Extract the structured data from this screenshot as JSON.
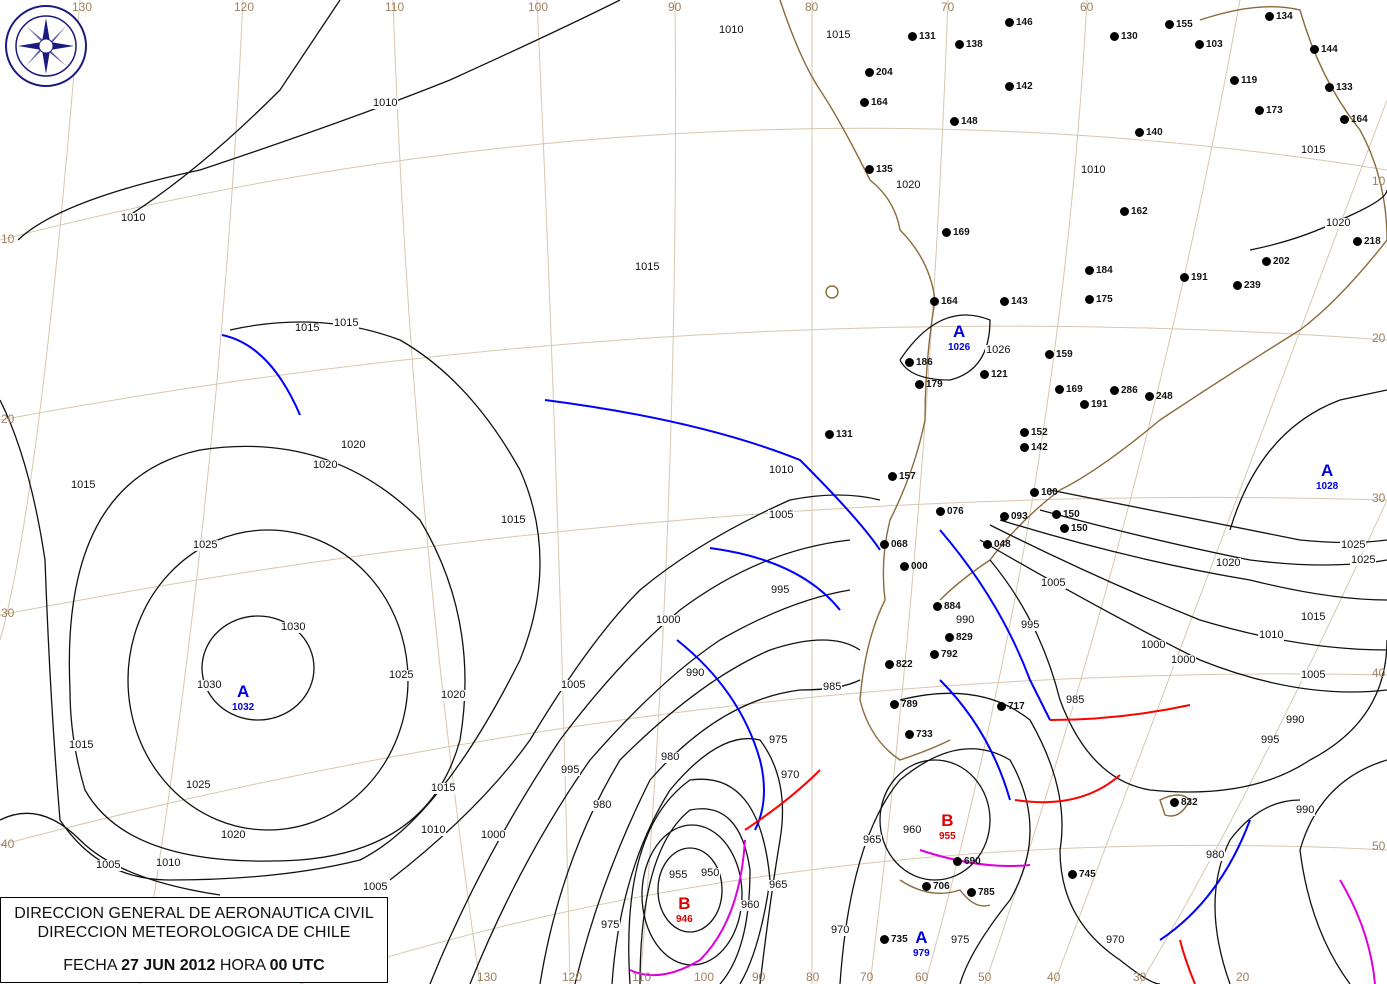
{
  "caption": {
    "line1": "DIRECCION GENERAL DE AERONAUTICA CIVIL",
    "line2": "DIRECCION METEOROLOGICA DE CHILE",
    "fecha_label": "FECHA",
    "date": "27 JUN 2012",
    "hora_label": "HORA",
    "time": "00 UTC"
  },
  "logo": {
    "text": "DIRECCION METEOROLOGICA CHILE",
    "color": "#1a1a80"
  },
  "colors": {
    "high": "#0000dd",
    "low": "#dd0000",
    "cold_front": "#0000ff",
    "warm_front": "#ff0000",
    "occluded_front": "#dd00dd",
    "isobar": "#111111",
    "grid": "#d8c7b0"
  },
  "longitudes_top": [
    "130",
    "120",
    "110",
    "100",
    "90",
    "80",
    "70",
    "60"
  ],
  "longitudes_bottom": [
    "130",
    "120",
    "110",
    "100",
    "90",
    "80",
    "70",
    "60",
    "50",
    "40",
    "30",
    "20"
  ],
  "latitudes_left": [
    "10",
    "20",
    "30",
    "40"
  ],
  "latitudes_right": [
    "10",
    "20",
    "30",
    "40",
    "50"
  ],
  "pressure_centers": [
    {
      "letter": "A",
      "value": "1032",
      "type": "high"
    },
    {
      "letter": "A",
      "value": "1026",
      "type": "high"
    },
    {
      "letter": "A",
      "value": "1028",
      "type": "high"
    },
    {
      "letter": "B",
      "value": "955",
      "type": "low"
    },
    {
      "letter": "B",
      "value": "946",
      "type": "low"
    },
    {
      "letter": "A",
      "value": "979",
      "type": "high"
    }
  ],
  "isobar_labels": [
    "1010",
    "1010",
    "1010",
    "1015",
    "1015",
    "1015",
    "1015",
    "1020",
    "1025",
    "1030",
    "1030",
    "1025",
    "1020",
    "1020",
    "1025",
    "1020",
    "1015",
    "1015",
    "1010",
    "1015",
    "1010",
    "1005",
    "1005",
    "1010",
    "1005",
    "1000",
    "995",
    "990",
    "985",
    "980",
    "975",
    "970",
    "965",
    "960",
    "955",
    "950",
    "960",
    "965",
    "970",
    "975",
    "990",
    "995",
    "1000",
    "1005",
    "1010",
    "1015",
    "1020",
    "1025",
    "985",
    "990",
    "1000",
    "1005",
    "995",
    "980",
    "975",
    "970",
    "980",
    "1020",
    "1015",
    "1025",
    "1010",
    "1015",
    "1020",
    "1026",
    "1000",
    "990",
    "995",
    "1005"
  ],
  "stations": [
    "131",
    "138",
    "146",
    "204",
    "164",
    "148",
    "142",
    "140",
    "130",
    "155",
    "103",
    "134",
    "144",
    "119",
    "173",
    "133",
    "164",
    "135",
    "162",
    "169",
    "184",
    "191",
    "239",
    "175",
    "202",
    "218",
    "143",
    "164",
    "186",
    "179",
    "121",
    "159",
    "169",
    "191",
    "286",
    "248",
    "131",
    "142",
    "152",
    "150",
    "150",
    "157",
    "160",
    "076",
    "068",
    "048",
    "000",
    "884",
    "829",
    "792",
    "822",
    "789",
    "733",
    "717",
    "832",
    "745",
    "690",
    "706",
    "785",
    "735",
    "093"
  ]
}
